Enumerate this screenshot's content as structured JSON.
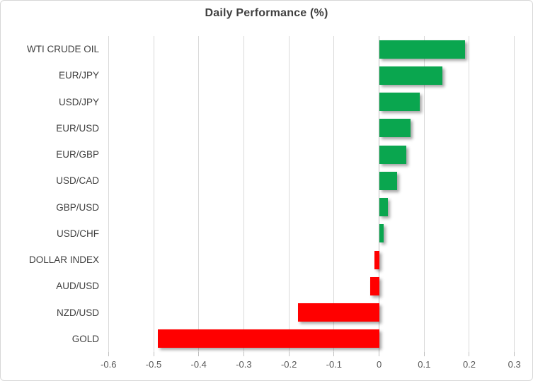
{
  "chart_data": {
    "type": "bar",
    "orientation": "horizontal",
    "title": "Daily Performance (%)",
    "categories": [
      "WTI CRUDE OIL",
      "EUR/JPY",
      "USD/JPY",
      "EUR/USD",
      "EUR/GBP",
      "USD/CAD",
      "GBP/USD",
      "USD/CHF",
      "DOLLAR INDEX",
      "AUD/USD",
      "NZD/USD",
      "GOLD"
    ],
    "values": [
      0.19,
      0.14,
      0.09,
      0.07,
      0.06,
      0.04,
      0.02,
      0.01,
      -0.01,
      -0.02,
      -0.18,
      -0.49
    ],
    "xlabel": "",
    "ylabel": "",
    "xlim": [
      -0.6,
      0.3
    ],
    "x_ticks": [
      -0.6,
      -0.5,
      -0.4,
      -0.3,
      -0.2,
      -0.1,
      0,
      0.1,
      0.2,
      0.3
    ],
    "x_tick_labels": [
      "-0.6",
      "-0.5",
      "-0.4",
      "-0.3",
      "-0.2",
      "-0.1",
      "0",
      "0.1",
      "0.2",
      "0.3"
    ],
    "grid": true,
    "legend": false,
    "positive_color": "#0aa64f",
    "negative_color": "#ff0000",
    "gridline_color": "#d9d9d9",
    "axis_line_color": "#bfbfbf"
  }
}
